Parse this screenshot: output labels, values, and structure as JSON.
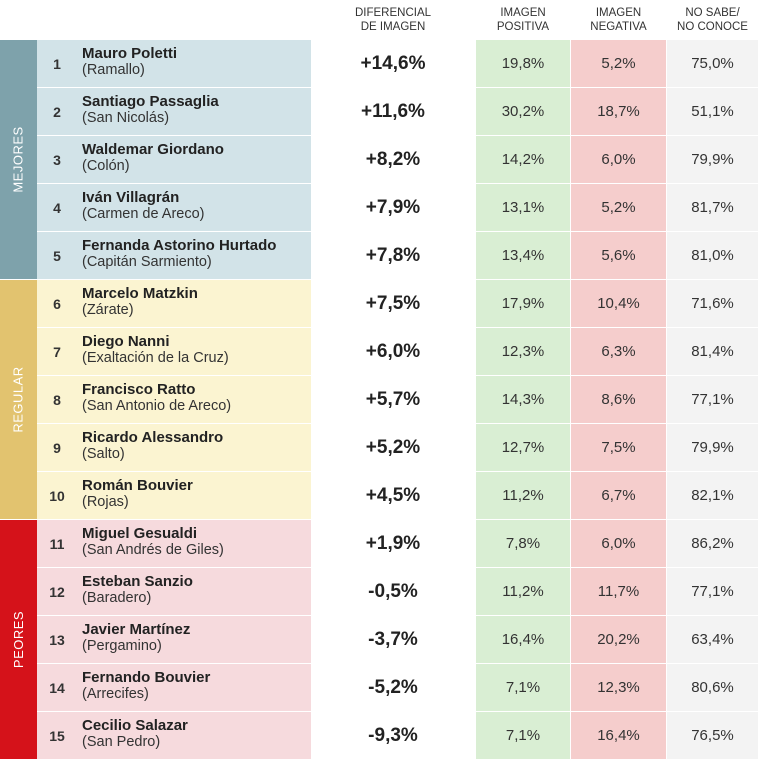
{
  "header": {
    "columns": [
      "DIFERENCIAL DE IMAGEN",
      "IMAGEN POSITIVA",
      "IMAGEN NEGATIVA",
      "NO SABE/ NO CONOCE"
    ]
  },
  "groups": [
    {
      "label": "MEJORES",
      "rows": [
        [
          "1",
          "Mauro Poletti",
          "(Ramallo)",
          "+14,6%",
          "19,8%",
          "5,2%",
          "75,0%"
        ],
        [
          "2",
          "Santiago Passaglia",
          "(San Nicolás)",
          "+11,6%",
          "30,2%",
          "18,7%",
          "51,1%"
        ],
        [
          "3",
          "Waldemar Giordano",
          "(Colón)",
          "+8,2%",
          "14,2%",
          "6,0%",
          "79,9%"
        ],
        [
          "4",
          "Iván Villagrán",
          "(Carmen de Areco)",
          "+7,9%",
          "13,1%",
          "5,2%",
          "81,7%"
        ],
        [
          "5",
          "Fernanda Astorino Hurtado",
          "(Capitán Sarmiento)",
          "+7,8%",
          "13,4%",
          "5,6%",
          "81,0%"
        ]
      ]
    },
    {
      "label": "REGULAR",
      "rows": [
        [
          "6",
          "Marcelo Matzkin",
          "(Zárate)",
          "+7,5%",
          "17,9%",
          "10,4%",
          "71,6%"
        ],
        [
          "7",
          "Diego Nanni",
          "(Exaltación de la Cruz)",
          "+6,0%",
          "12,3%",
          "6,3%",
          "81,4%"
        ],
        [
          "8",
          "Francisco Ratto",
          "(San Antonio de Areco)",
          "+5,7%",
          "14,3%",
          "8,6%",
          "77,1%"
        ],
        [
          "9",
          "Ricardo Alessandro",
          "(Salto)",
          "+5,2%",
          "12,7%",
          "7,5%",
          "79,9%"
        ],
        [
          "10",
          "Román Bouvier",
          "(Rojas)",
          "+4,5%",
          "11,2%",
          "6,7%",
          "82,1%"
        ]
      ]
    },
    {
      "label": "PEORES",
      "rows": [
        [
          "11",
          "Miguel Gesualdi",
          "(San Andrés de Giles)",
          "+1,9%",
          "7,8%",
          "6,0%",
          "86,2%"
        ],
        [
          "12",
          "Esteban Sanzio",
          "(Baradero)",
          "-0,5%",
          "11,2%",
          "11,7%",
          "77,1%"
        ],
        [
          "13",
          "Javier Martínez",
          "(Pergamino)",
          "-3,7%",
          "16,4%",
          "20,2%",
          "63,4%"
        ],
        [
          "14",
          "Fernando Bouvier",
          "(Arrecifes)",
          "-5,2%",
          "7,1%",
          "12,3%",
          "80,6%"
        ],
        [
          "15",
          "Cecilio Salazar",
          "(San Pedro)",
          "-9,3%",
          "7,1%",
          "16,4%",
          "76,5%"
        ]
      ]
    }
  ]
}
